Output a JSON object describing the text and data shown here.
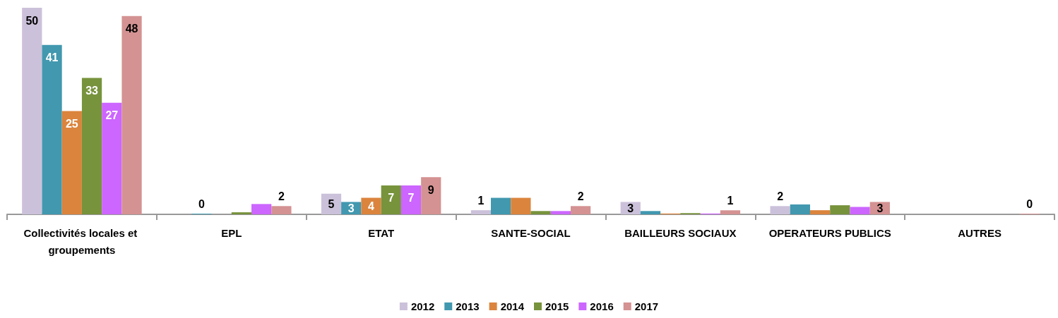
{
  "chart_data": {
    "type": "bar",
    "categories": [
      "Collectivités locales et groupements",
      "EPL",
      "ETAT",
      "SANTE-SOCIAL",
      "BAILLEURS SOCIAUX",
      "OPERATEURS PUBLICS",
      "AUTRES"
    ],
    "series": [
      {
        "name": "2012",
        "color": "#ccc1da",
        "values": [
          50,
          null,
          5,
          1,
          3,
          2,
          null
        ],
        "value_labels": [
          "50",
          null,
          "5",
          "1",
          "3",
          "2",
          null
        ]
      },
      {
        "name": "2013",
        "color": "#4198af",
        "values": [
          41,
          0,
          3,
          4,
          0.8,
          2.4,
          null
        ],
        "value_labels": [
          "41",
          "0",
          "3",
          null,
          null,
          null,
          null
        ]
      },
      {
        "name": "2014",
        "color": "#db843d",
        "values": [
          25,
          null,
          4,
          4,
          0.2,
          1,
          null
        ],
        "value_labels": [
          "25",
          null,
          "4",
          null,
          null,
          null,
          null
        ]
      },
      {
        "name": "2015",
        "color": "#77933c",
        "values": [
          33,
          0.5,
          7,
          0.8,
          0.3,
          2.2,
          null
        ],
        "value_labels": [
          "33",
          null,
          "7",
          null,
          null,
          null,
          null
        ]
      },
      {
        "name": "2016",
        "color": "#cc66ff",
        "values": [
          27,
          2.5,
          7,
          0.8,
          0.2,
          1.8,
          null
        ],
        "value_labels": [
          "27",
          null,
          "7",
          null,
          null,
          null,
          null
        ]
      },
      {
        "name": "2017",
        "color": "#d49292",
        "values": [
          48,
          2,
          9,
          2,
          1,
          3,
          0
        ],
        "value_labels": [
          "48",
          "2",
          "9",
          "2",
          "1",
          "3",
          "0"
        ]
      }
    ],
    "legend": "bottom"
  }
}
